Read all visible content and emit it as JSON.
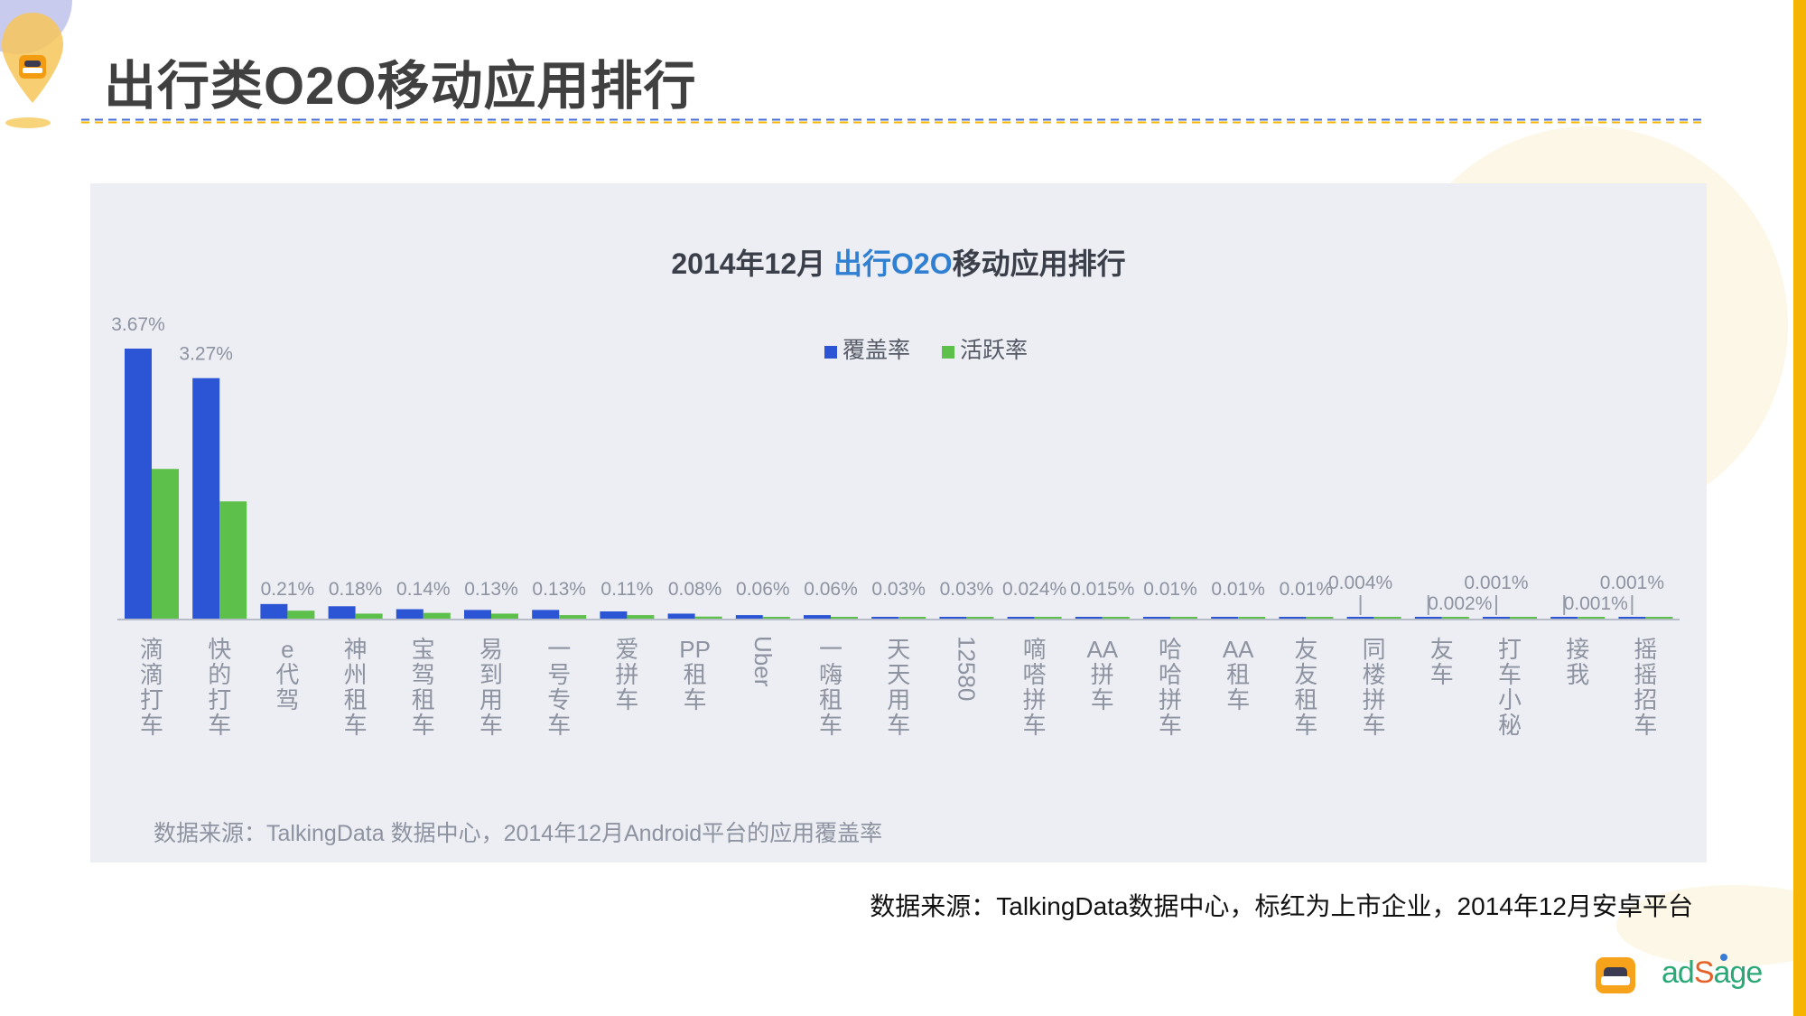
{
  "page": {
    "title": "出行类O2O移动应用排行",
    "caption": "数据来源：TalkingData数据中心，标红为上市企业，2014年12月安卓平台",
    "brand": {
      "prefix": "ad",
      "accent": "S",
      "suffix": "age"
    },
    "colors": {
      "title": "#404040",
      "accent_bar": "#f5b400",
      "rule_blue": "#4a6fd6",
      "rule_yellow": "#f5b400",
      "brand_green": "#2aa876"
    },
    "icons": [
      "car-logo-icon",
      "map-pin-icon"
    ]
  },
  "chart_data": {
    "type": "bar",
    "title_prefix": "2014年12月 ",
    "title_highlight": "出行O2O",
    "title_suffix": "移动应用排行",
    "source_note": "数据来源：TalkingData 数据中心，2014年12月Android平台的应用覆盖率",
    "legend_position": "top-center",
    "grid": false,
    "categories": [
      "滴滴打车",
      "快的打车",
      "e代驾",
      "神州租车",
      "宝驾租车",
      "易到用车",
      "一号专车",
      "爱拼车",
      "PP租车",
      "Uber",
      "一嗨租车",
      "天天用车",
      "12580",
      "嘀嗒拼车",
      "AA拼车",
      "哈哈拼车",
      "AA租车",
      "友友租车",
      "同楼拼车",
      "友车",
      "打车小秘",
      "接我",
      "摇摇招车"
    ],
    "value_labels": [
      "3.67%",
      "3.27%",
      "0.21%",
      "0.18%",
      "0.14%",
      "0.13%",
      "0.13%",
      "0.11%",
      "0.08%",
      "0.06%",
      "0.06%",
      "0.03%",
      "0.03%",
      "0.024%",
      "0.015%",
      "0.01%",
      "0.01%",
      "0.01%",
      "0.004%",
      "0.002%",
      "0.001%",
      "0.001%",
      "0.001%"
    ],
    "series": [
      {
        "name": "覆盖率",
        "color": "#2b55d4",
        "values": [
          3.67,
          3.27,
          0.21,
          0.18,
          0.14,
          0.13,
          0.13,
          0.11,
          0.08,
          0.06,
          0.06,
          0.03,
          0.03,
          0.024,
          0.015,
          0.01,
          0.01,
          0.01,
          0.004,
          0.002,
          0.001,
          0.001,
          0.001
        ]
      },
      {
        "name": "活跃率",
        "color": "#5cc04a",
        "values": [
          2.04,
          1.6,
          0.12,
          0.08,
          0.09,
          0.08,
          0.06,
          0.06,
          0.04,
          0.03,
          0.02,
          0.02,
          0.01,
          0.01,
          0.01,
          0.005,
          0.005,
          0.005,
          0.002,
          0.001,
          0.0005,
          0.0005,
          0.0005
        ]
      }
    ],
    "ylim": [
      0,
      3.67
    ],
    "colors": {
      "title_text": "#3a3f4a",
      "title_highlight": "#2f7fd3",
      "axis": "#b6bcc8",
      "label": "#8d93a0"
    }
  }
}
